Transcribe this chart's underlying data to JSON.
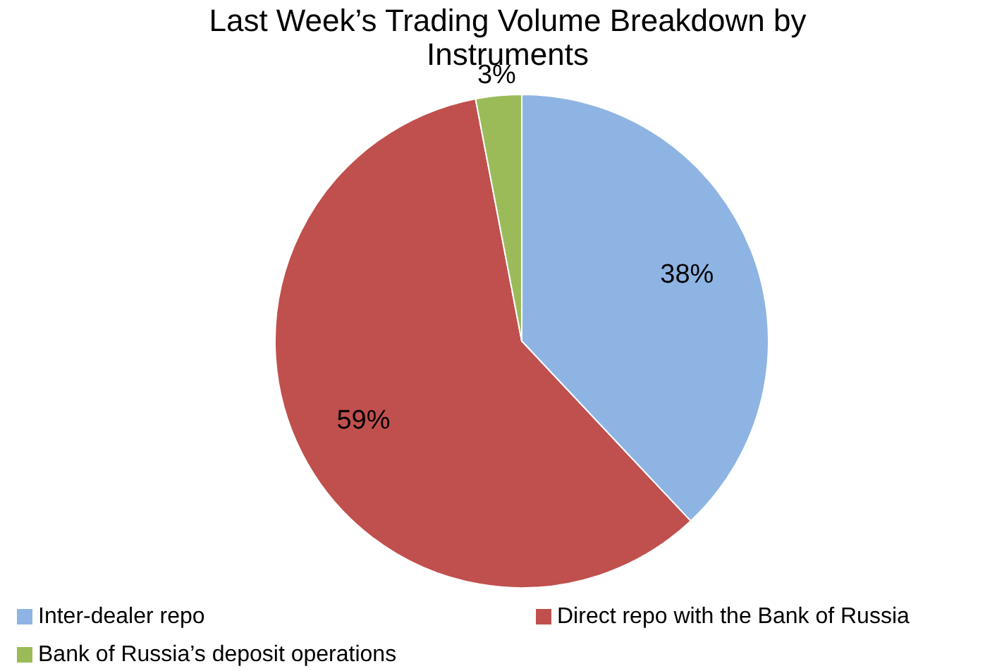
{
  "chart_data": {
    "type": "pie",
    "title": "Last Week’s Trading Volume Breakdown by Instruments",
    "categories": [
      "Inter-dealer repo",
      "Direct repo with the Bank of Russia",
      "Bank of Russia’s deposit operations"
    ],
    "values": [
      38,
      59,
      3
    ],
    "colors": [
      "#8eb4e3",
      "#c0504d",
      "#9bbb59"
    ],
    "value_labels": [
      "38%",
      "59%",
      "3%"
    ],
    "legend": "bottom"
  }
}
